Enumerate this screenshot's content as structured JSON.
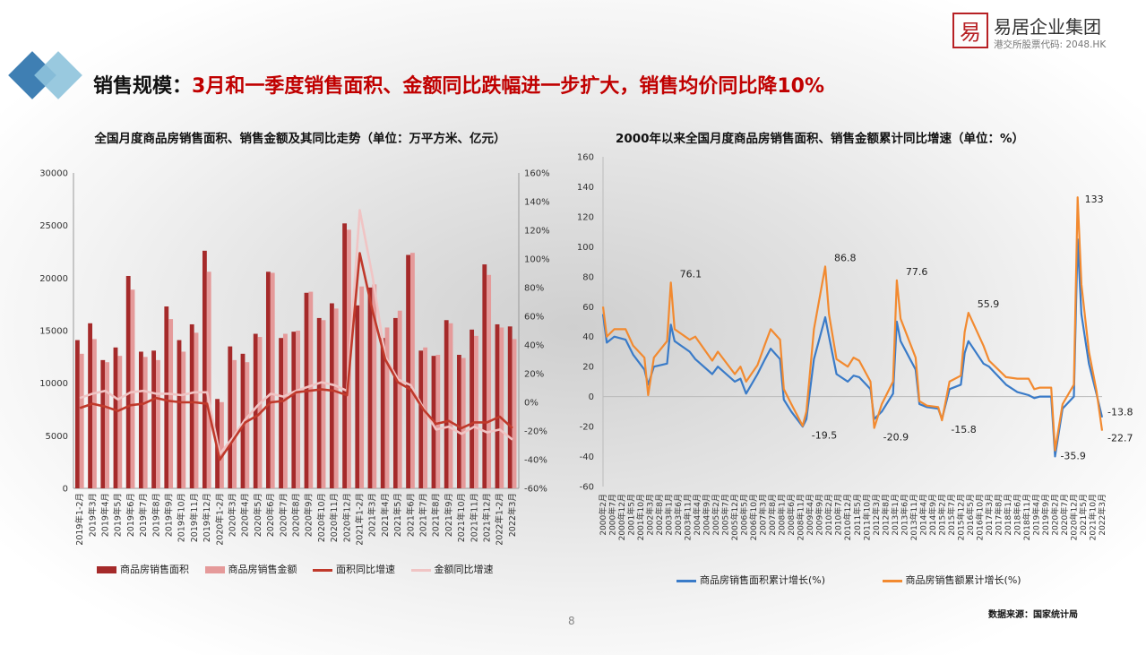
{
  "slide": {
    "title_prefix": "销售规模：",
    "title_main": "3月和一季度销售面积、金额同比跌幅进一步扩大，销售均价同比降10%",
    "page_number": "8",
    "source": "数据来源：国家统计局"
  },
  "logo": {
    "seal_char": "易",
    "brand": "易居企业集团",
    "stock": "港交所股票代码: 2048.HK"
  },
  "colors": {
    "area_bar": "#a52a2a",
    "amount_bar": "#e59a9a",
    "area_line": "#c0392b",
    "amount_line": "#f0c4c4",
    "cum_area": "#3a7bc8",
    "cum_amount": "#f28a30",
    "title_red": "#c00000"
  },
  "chart_data": [
    {
      "type": "bar",
      "title": "全国月度商品房销售面积、销售金额及其同比走势（单位：万平方米、亿元）",
      "categories": [
        "2019年1-2月",
        "2019年3月",
        "2019年4月",
        "2019年5月",
        "2019年6月",
        "2019年7月",
        "2019年8月",
        "2019年9月",
        "2019年10月",
        "2019年11月",
        "2019年12月",
        "2020年1-2月",
        "2020年3月",
        "2020年4月",
        "2020年5月",
        "2020年6月",
        "2020年7月",
        "2020年8月",
        "2020年9月",
        "2020年10月",
        "2020年11月",
        "2020年12月",
        "2021年1-2月",
        "2021年3月",
        "2021年4月",
        "2021年5月",
        "2021年6月",
        "2021年7月",
        "2021年8月",
        "2021年9月",
        "2021年10月",
        "2021年11月",
        "2021年12月",
        "2022年1-2月",
        "2022年3月"
      ],
      "ylim_left": [
        0,
        30000
      ],
      "yticks_left": [
        "0",
        "5000",
        "10000",
        "15000",
        "20000",
        "25000",
        "30000"
      ],
      "ylim_right": [
        -60,
        160
      ],
      "yticks_right": [
        "-60%",
        "-40%",
        "-20%",
        "0%",
        "20%",
        "40%",
        "60%",
        "80%",
        "100%",
        "120%",
        "140%",
        "160%"
      ],
      "series": [
        {
          "name": "商品房销售面积",
          "kind": "bar",
          "axis": "left",
          "values": [
            14100,
            15700,
            12200,
            13400,
            20200,
            13000,
            13100,
            17300,
            14100,
            15600,
            22600,
            8500,
            13500,
            12800,
            14700,
            20600,
            14300,
            14900,
            18600,
            16200,
            17600,
            25200,
            17400,
            19100,
            14300,
            16200,
            22200,
            13100,
            12600,
            16000,
            12700,
            15100,
            21300,
            15600,
            15400
          ]
        },
        {
          "name": "商品房销售金额",
          "kind": "bar",
          "axis": "left",
          "values": [
            12800,
            14200,
            12000,
            12600,
            18900,
            12500,
            12200,
            16100,
            13000,
            14800,
            20600,
            8200,
            12200,
            12000,
            14400,
            20500,
            14700,
            15000,
            18700,
            16000,
            17100,
            24600,
            19200,
            19400,
            15300,
            16900,
            22400,
            13400,
            12700,
            15700,
            12400,
            14500,
            20300,
            15300,
            14200
          ]
        },
        {
          "name": "面积同比增速",
          "kind": "line",
          "axis": "right",
          "values": [
            -4,
            -1,
            -3,
            -6,
            -2,
            -1,
            3,
            1,
            0,
            0,
            -1,
            -40,
            -27,
            -14,
            -9,
            0,
            1,
            7,
            8,
            9,
            8,
            5,
            104,
            64,
            30,
            14,
            9,
            -5,
            -15,
            -13,
            -18,
            -14,
            -14,
            -10,
            -18
          ]
        },
        {
          "name": "金额同比增速",
          "kind": "line",
          "axis": "right",
          "values": [
            3,
            6,
            8,
            2,
            7,
            8,
            6,
            6,
            5,
            7,
            7,
            -36,
            -25,
            -12,
            -2,
            6,
            4,
            8,
            11,
            14,
            12,
            8,
            134,
            88,
            32,
            16,
            12,
            -4,
            -19,
            -17,
            -22,
            -17,
            -21,
            -19,
            -26
          ]
        }
      ]
    },
    {
      "type": "line",
      "title": "2000年以来全国月度商品房销售面积、销售金额累计同比增速（单位：%）",
      "ylim": [
        -60,
        160
      ],
      "yticks": [
        "-60",
        "-40",
        "-20",
        "0",
        "20",
        "40",
        "60",
        "80",
        "100",
        "120",
        "140",
        "160"
      ],
      "x_start": "2000年2月",
      "x_end": "2022年3月",
      "xtick_labels": [
        "2000年2月",
        "2000年7月",
        "2000年12月",
        "2001年5月",
        "2001年10月",
        "2002年3月",
        "2002年8月",
        "2003年1月",
        "2003年6月",
        "2003年11月",
        "2004年4月",
        "2004年9月",
        "2005年2月",
        "2005年7月",
        "2005年12月",
        "2006年5月",
        "2006年10月",
        "2007年3月",
        "2007年8月",
        "2008年1月",
        "2008年6月",
        "2008年11月",
        "2009年4月",
        "2009年9月",
        "2010年2月",
        "2010年7月",
        "2010年12月",
        "2011年5月",
        "2011年10月",
        "2012年3月",
        "2012年8月",
        "2013年1月",
        "2013年6月",
        "2013年11月",
        "2014年4月",
        "2014年9月",
        "2015年2月",
        "2015年7月",
        "2015年12月",
        "2016年5月",
        "2016年10月",
        "2017年3月",
        "2017年8月",
        "2018年1月",
        "2018年6月",
        "2018年11月",
        "2019年4月",
        "2019年9月",
        "2020年2月",
        "2020年7月",
        "2020年12月",
        "2021年5月",
        "2021年10月",
        "2022年3月"
      ],
      "series": [
        {
          "name": "商品房销售面积累计增长(%)",
          "points": [
            [
              "2000-02",
              55
            ],
            [
              "2000-04",
              36
            ],
            [
              "2000-08",
              40
            ],
            [
              "2001-02",
              38
            ],
            [
              "2001-06",
              28
            ],
            [
              "2001-12",
              18
            ],
            [
              "2002-02",
              8
            ],
            [
              "2002-05",
              20
            ],
            [
              "2002-12",
              22
            ],
            [
              "2003-02",
              48
            ],
            [
              "2003-04",
              37
            ],
            [
              "2003-12",
              30
            ],
            [
              "2004-03",
              25
            ],
            [
              "2004-12",
              15
            ],
            [
              "2005-03",
              20
            ],
            [
              "2005-12",
              10
            ],
            [
              "2006-03",
              12
            ],
            [
              "2006-06",
              2
            ],
            [
              "2006-12",
              15
            ],
            [
              "2007-04",
              25
            ],
            [
              "2007-07",
              32
            ],
            [
              "2007-12",
              25
            ],
            [
              "2008-02",
              -2
            ],
            [
              "2008-06",
              -10
            ],
            [
              "2008-12",
              -20
            ],
            [
              "2009-02",
              -15
            ],
            [
              "2009-06",
              25
            ],
            [
              "2009-12",
              53
            ],
            [
              "2010-02",
              40
            ],
            [
              "2010-06",
              15
            ],
            [
              "2010-12",
              10
            ],
            [
              "2011-03",
              14
            ],
            [
              "2011-06",
              13
            ],
            [
              "2011-12",
              5
            ],
            [
              "2012-02",
              -15
            ],
            [
              "2012-06",
              -10
            ],
            [
              "2012-12",
              2
            ],
            [
              "2013-02",
              50
            ],
            [
              "2013-04",
              37
            ],
            [
              "2013-12",
              18
            ],
            [
              "2014-02",
              -5
            ],
            [
              "2014-06",
              -7
            ],
            [
              "2014-12",
              -8
            ],
            [
              "2015-02",
              -15
            ],
            [
              "2015-06",
              5
            ],
            [
              "2015-12",
              8
            ],
            [
              "2016-02",
              29
            ],
            [
              "2016-04",
              37
            ],
            [
              "2016-12",
              22
            ],
            [
              "2017-03",
              20
            ],
            [
              "2017-12",
              8
            ],
            [
              "2018-06",
              3
            ],
            [
              "2018-12",
              1
            ],
            [
              "2019-03",
              -1
            ],
            [
              "2019-06",
              0
            ],
            [
              "2019-12",
              0
            ],
            [
              "2020-02",
              -39.9
            ],
            [
              "2020-06",
              -8
            ],
            [
              "2020-12",
              0
            ],
            [
              "2021-02",
              104.9
            ],
            [
              "2021-04",
              55
            ],
            [
              "2021-08",
              22
            ],
            [
              "2021-12",
              2
            ],
            [
              "2022-03",
              -13.8
            ]
          ]
        },
        {
          "name": "商品房销售额累计增长(%)",
          "points": [
            [
              "2000-02",
              60
            ],
            [
              "2000-04",
              40
            ],
            [
              "2000-08",
              45
            ],
            [
              "2001-02",
              45
            ],
            [
              "2001-06",
              34
            ],
            [
              "2001-12",
              26
            ],
            [
              "2002-02",
              1
            ],
            [
              "2002-05",
              26
            ],
            [
              "2002-12",
              37
            ],
            [
              "2003-02",
              76.1
            ],
            [
              "2003-04",
              45
            ],
            [
              "2003-12",
              38
            ],
            [
              "2004-03",
              40
            ],
            [
              "2004-12",
              24
            ],
            [
              "2005-03",
              30
            ],
            [
              "2005-12",
              15
            ],
            [
              "2006-03",
              20
            ],
            [
              "2006-06",
              10
            ],
            [
              "2006-12",
              21
            ],
            [
              "2007-04",
              35
            ],
            [
              "2007-07",
              45
            ],
            [
              "2007-12",
              38
            ],
            [
              "2008-02",
              5
            ],
            [
              "2008-06",
              -5
            ],
            [
              "2008-12",
              -19.5
            ],
            [
              "2009-02",
              -10
            ],
            [
              "2009-06",
              45
            ],
            [
              "2009-12",
              86.8
            ],
            [
              "2010-02",
              55
            ],
            [
              "2010-06",
              25
            ],
            [
              "2010-12",
              20
            ],
            [
              "2011-03",
              26
            ],
            [
              "2011-06",
              24
            ],
            [
              "2011-12",
              10
            ],
            [
              "2012-02",
              -20.9
            ],
            [
              "2012-06",
              -5
            ],
            [
              "2012-12",
              10
            ],
            [
              "2013-02",
              77.6
            ],
            [
              "2013-04",
              52
            ],
            [
              "2013-12",
              26
            ],
            [
              "2014-02",
              -3
            ],
            [
              "2014-06",
              -6
            ],
            [
              "2014-12",
              -7
            ],
            [
              "2015-02",
              -15.8
            ],
            [
              "2015-06",
              10
            ],
            [
              "2015-12",
              14
            ],
            [
              "2016-02",
              43
            ],
            [
              "2016-04",
              55.9
            ],
            [
              "2016-12",
              34
            ],
            [
              "2017-03",
              24
            ],
            [
              "2017-12",
              13
            ],
            [
              "2018-06",
              12
            ],
            [
              "2018-12",
              12
            ],
            [
              "2019-03",
              5
            ],
            [
              "2019-06",
              6
            ],
            [
              "2019-12",
              6
            ],
            [
              "2020-02",
              -35.9
            ],
            [
              "2020-06",
              -5
            ],
            [
              "2020-12",
              8
            ],
            [
              "2021-02",
              133
            ],
            [
              "2021-04",
              75
            ],
            [
              "2021-08",
              30
            ],
            [
              "2021-12",
              4
            ],
            [
              "2022-03",
              -22.7
            ]
          ]
        }
      ],
      "annotations": [
        {
          "date": "2003-02",
          "value": 76.1,
          "text": "76.1"
        },
        {
          "date": "2009-12",
          "value": 86.8,
          "text": "86.8"
        },
        {
          "date": "2013-02",
          "value": 77.6,
          "text": "77.6"
        },
        {
          "date": "2016-04",
          "value": 55.9,
          "text": "55.9"
        },
        {
          "date": "2021-02",
          "value": 133,
          "text": "133"
        },
        {
          "date": "2008-12",
          "value": -19.5,
          "text": "-19.5"
        },
        {
          "date": "2012-02",
          "value": -20.9,
          "text": "-20.9"
        },
        {
          "date": "2015-02",
          "value": -15.8,
          "text": "-15.8"
        },
        {
          "date": "2020-02",
          "value": -35.9,
          "text": "-35.9"
        },
        {
          "date": "2022-03",
          "value": -13.8,
          "text": "-13.8"
        },
        {
          "date": "2022-03",
          "value": -22.7,
          "text": "-22.7"
        }
      ]
    }
  ]
}
